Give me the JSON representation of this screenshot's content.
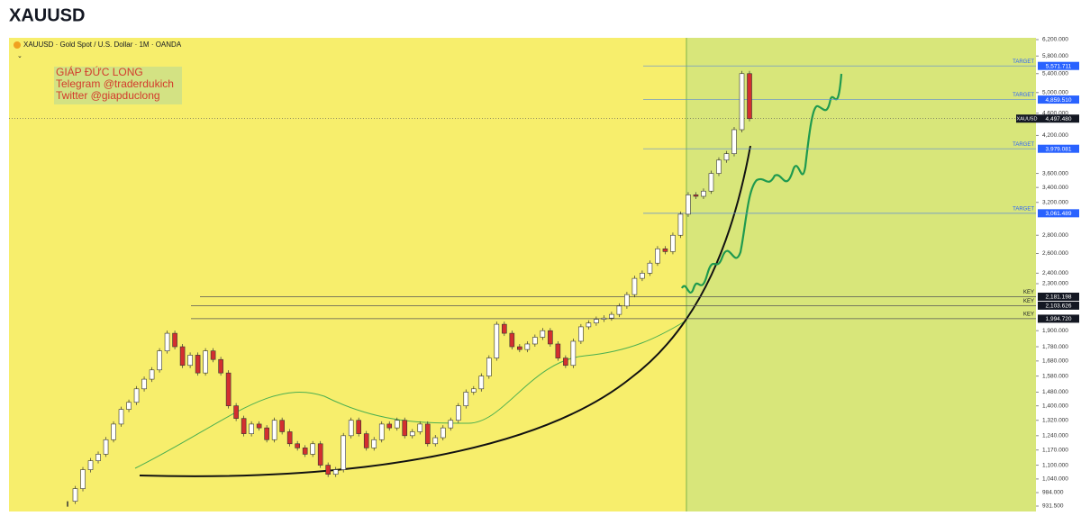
{
  "header": {
    "title": "XAUUSD"
  },
  "chart_data": {
    "type": "candlestick",
    "title": "XAUUSD · Gold Spot / U.S. Dollar · 1M · OANDA",
    "annotation": [
      "GIÁP ĐỨC LONG",
      "Telegram @traderdukich",
      "Twitter @giapduclong"
    ],
    "log_scale": true,
    "ylim": [
      931.5,
      6200
    ],
    "yticks": [
      {
        "value": 6200,
        "label": "6,200.000"
      },
      {
        "value": 5800,
        "label": "5,800.000"
      },
      {
        "value": 5400,
        "label": "5,400.000"
      },
      {
        "value": 5000,
        "label": "5,000.000"
      },
      {
        "value": 4600,
        "label": "4,600.000"
      },
      {
        "value": 4200,
        "label": "4,200.000"
      },
      {
        "value": 3600,
        "label": "3,600.000"
      },
      {
        "value": 3400,
        "label": "3,400.000"
      },
      {
        "value": 3200,
        "label": "3,200.000"
      },
      {
        "value": 2800,
        "label": "2,800.000"
      },
      {
        "value": 2600,
        "label": "2,600.000"
      },
      {
        "value": 2400,
        "label": "2,400.000"
      },
      {
        "value": 2300,
        "label": "2,300.000"
      },
      {
        "value": 1900,
        "label": "1,900.000"
      },
      {
        "value": 1780,
        "label": "1,780.000"
      },
      {
        "value": 1680,
        "label": "1,680.000"
      },
      {
        "value": 1580,
        "label": "1,580.000"
      },
      {
        "value": 1480,
        "label": "1,480.000"
      },
      {
        "value": 1400,
        "label": "1,400.000"
      },
      {
        "value": 1320,
        "label": "1,320.000"
      },
      {
        "value": 1240,
        "label": "1,240.000"
      },
      {
        "value": 1170,
        "label": "1,170.000"
      },
      {
        "value": 1100,
        "label": "1,100.000"
      },
      {
        "value": 1040,
        "label": "1,040.000"
      },
      {
        "value": 984,
        "label": "984.000"
      },
      {
        "value": 931.5,
        "label": "931.500"
      }
    ],
    "levels": [
      {
        "text": "TARGET",
        "value": 5571.711,
        "label": "5,571.711",
        "color": "#2962ff"
      },
      {
        "text": "TARGET",
        "value": 4859.51,
        "label": "4,859.510",
        "color": "#2962ff"
      },
      {
        "text": "TARGET",
        "value": 3979.081,
        "label": "3,979.081",
        "color": "#2962ff"
      },
      {
        "text": "TARGET",
        "value": 3061.489,
        "label": "3,061.489",
        "color": "#2962ff"
      },
      {
        "text": "KEY",
        "value": 2181.198,
        "label": "2,181.198",
        "color": "#131722"
      },
      {
        "text": "KEY",
        "value": 2103.626,
        "label": "2,103.626",
        "color": "#131722"
      },
      {
        "text": "KEY",
        "value": 1994.72,
        "label": "1,994.720",
        "color": "#131722"
      }
    ],
    "current": {
      "text": "XAUUSD",
      "value": 4497.48,
      "label": "4,497.480",
      "color": "#131722"
    },
    "up_color": "#ffffff",
    "down_color": "#d32f2f",
    "values": [
      950,
      1000,
      1080,
      1120,
      1150,
      1220,
      1300,
      1380,
      1420,
      1500,
      1560,
      1620,
      1750,
      1880,
      1780,
      1650,
      1720,
      1600,
      1750,
      1690,
      1600,
      1400,
      1330,
      1250,
      1300,
      1280,
      1220,
      1320,
      1260,
      1200,
      1180,
      1150,
      1200,
      1100,
      1060,
      1080,
      1240,
      1320,
      1250,
      1180,
      1220,
      1300,
      1280,
      1320,
      1240,
      1260,
      1300,
      1200,
      1230,
      1280,
      1320,
      1400,
      1480,
      1500,
      1580,
      1700,
      1950,
      1880,
      1780,
      1760,
      1800,
      1850,
      1900,
      1800,
      1700,
      1650,
      1820,
      1930,
      1960,
      1990,
      2000,
      2030,
      2100,
      2200,
      2350,
      2400,
      2500,
      2650,
      2620,
      2800,
      3050,
      3300,
      3280,
      3350,
      3600,
      3800,
      3900,
      4300,
      5400,
      4497.48
    ]
  }
}
